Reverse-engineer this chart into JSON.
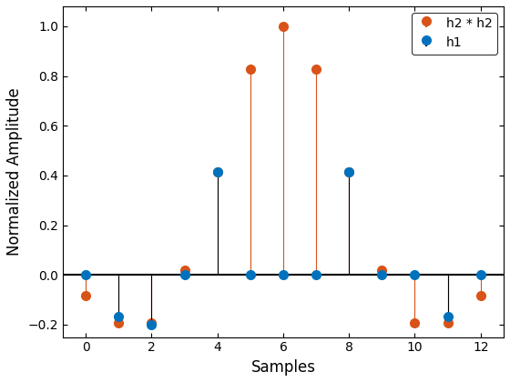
{
  "h1_x": [
    0,
    1,
    2,
    3,
    4,
    5,
    6,
    7,
    8,
    9,
    10,
    11,
    12
  ],
  "h1_y": [
    0.0,
    -0.1667,
    -0.2,
    0.0,
    0.4135,
    0.0,
    0.0,
    0.0,
    0.4135,
    0.0,
    0.0,
    -0.1667,
    0.0
  ],
  "h2_x": [
    0,
    1,
    2,
    3,
    4,
    5,
    6,
    7,
    8,
    9,
    10,
    11,
    12
  ],
  "h2_y": [
    -0.083,
    -0.192,
    -0.192,
    0.02,
    0.414,
    0.828,
    1.0,
    0.828,
    0.414,
    0.02,
    -0.192,
    -0.192,
    -0.083
  ],
  "h1_line_color": "#000000",
  "h1_marker_color": "#0072BD",
  "h2_line_color": "#D95319",
  "h2_marker_color": "#D95319",
  "xlabel": "Samples",
  "ylabel": "Normalized Amplitude",
  "legend_labels": [
    "h1",
    "h2 * h2"
  ],
  "xlim": [
    -0.7,
    12.7
  ],
  "ylim": [
    -0.25,
    1.08
  ],
  "baseline_color": "#000000",
  "baseline_linewidth": 1.5,
  "stem_linewidth": 0.8,
  "markersize": 7,
  "xticks": [
    0,
    2,
    4,
    6,
    8,
    10,
    12
  ],
  "yticks": [
    -0.2,
    0.0,
    0.2,
    0.4,
    0.6,
    0.8,
    1.0
  ]
}
